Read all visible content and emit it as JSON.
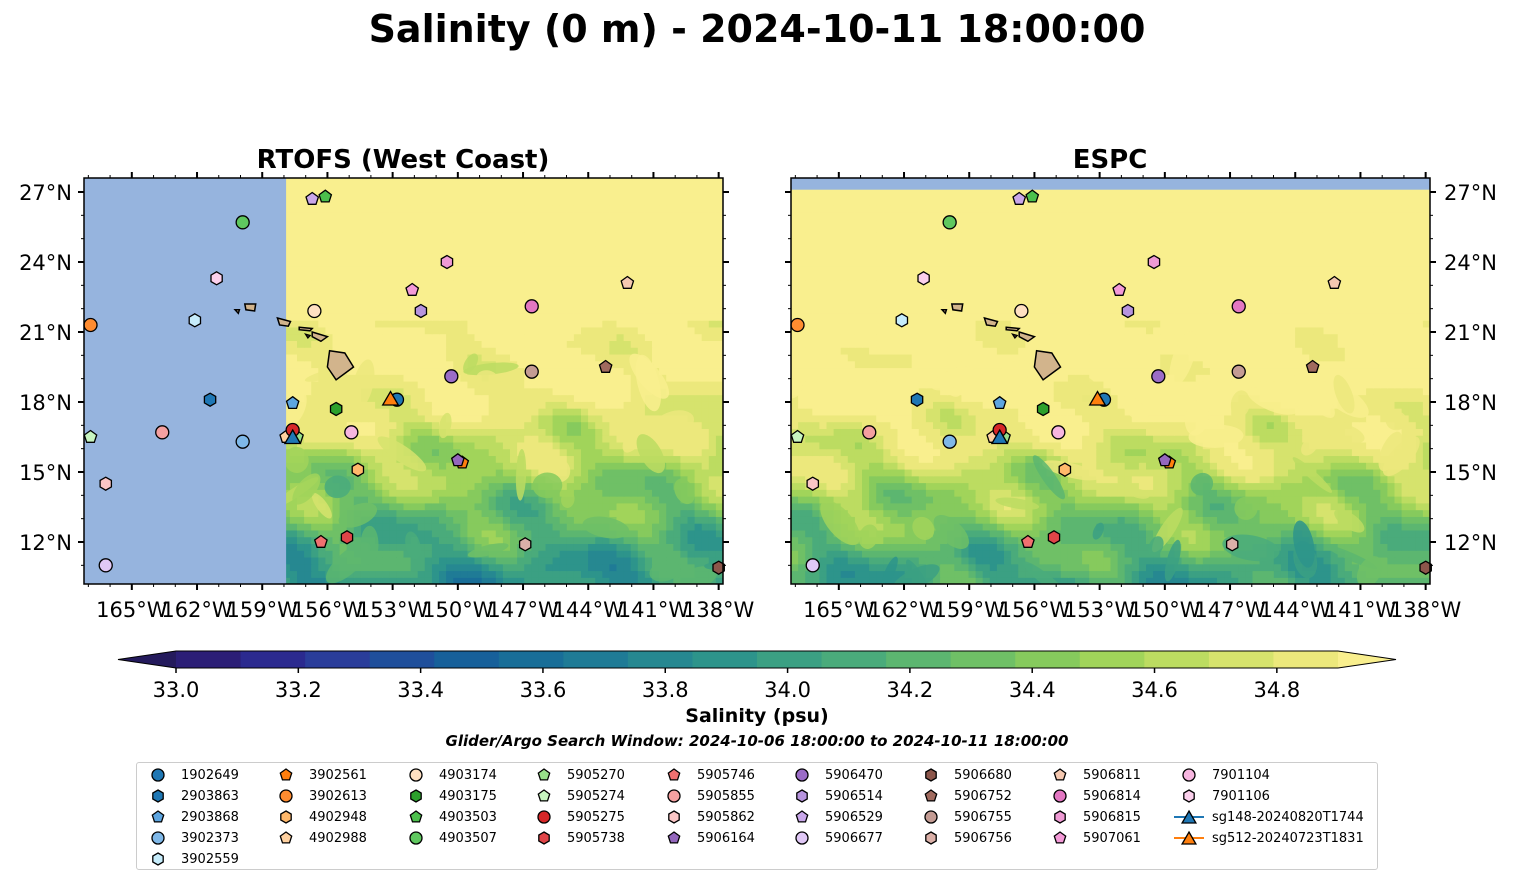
{
  "title": "Salinity (0 m) - 2024-10-11 18:00:00",
  "colorbar": {
    "label": "Salinity (psu)",
    "ticks": [
      "33.0",
      "33.2",
      "33.4",
      "33.6",
      "33.8",
      "34.0",
      "34.2",
      "34.4",
      "34.6",
      "34.8"
    ],
    "min": 33.0,
    "max": 34.9,
    "step": 0.1,
    "colors": [
      "#2b1e76",
      "#2b2a8f",
      "#2a3d9a",
      "#1f4f9b",
      "#17609a",
      "#196e98",
      "#1f7b96",
      "#268891",
      "#2d948b",
      "#3ba083",
      "#4aab7b",
      "#5cb670",
      "#6fc066",
      "#86ca5d",
      "#a1d45a",
      "#bcdc61",
      "#d6e36d",
      "#ece87c"
    ],
    "under_color": "#241a5c",
    "over_color": "#f9ef8e"
  },
  "subtitle": "Glider/Argo Search Window: 2024-10-06 18:00:00 to 2024-10-11 18:00:00",
  "chart_data": [
    {
      "type": "heatmap",
      "panel": "left",
      "title": "RTOFS (West Coast)",
      "xlim": [
        -167.2,
        -137.8
      ],
      "ylim": [
        10.2,
        27.6
      ],
      "xticks": [
        -165,
        -162,
        -159,
        -156,
        -153,
        -150,
        -147,
        -144,
        -141,
        -138
      ],
      "xtick_labels": [
        "165°W",
        "162°W",
        "159°W",
        "156°W",
        "153°W",
        "150°W",
        "147°W",
        "144°W",
        "141°W",
        "138°W"
      ],
      "yticks": [
        12,
        15,
        18,
        21,
        24,
        27
      ],
      "ytick_labels": [
        "12°N",
        "15°N",
        "18°N",
        "21°N",
        "24°N",
        "27°N"
      ],
      "ytick_side": "left",
      "no_data_west_of_lon": -157.9,
      "no_data_color": "#96b4de"
    },
    {
      "type": "heatmap",
      "panel": "right",
      "title": "ESPC",
      "xlim": [
        -167.2,
        -137.8
      ],
      "ylim": [
        10.2,
        27.6
      ],
      "xticks": [
        -165,
        -162,
        -159,
        -156,
        -153,
        -150,
        -147,
        -144,
        -141,
        -138
      ],
      "xtick_labels": [
        "165°W",
        "162°W",
        "159°W",
        "156°W",
        "153°W",
        "150°W",
        "147°W",
        "144°W",
        "141°W",
        "138°W"
      ],
      "yticks": [
        12,
        15,
        18,
        21,
        24,
        27
      ],
      "ytick_labels": [
        "12°N",
        "15°N",
        "18°N",
        "21°N",
        "24°N",
        "27°N"
      ],
      "ytick_side": "right",
      "no_data_north_of_lat": 27.1,
      "no_data_color": "#96b4de"
    }
  ],
  "platforms": [
    {
      "id": "1902649",
      "marker": "circle",
      "color": "#1f77b4",
      "lon": -152.8,
      "lat": 18.1
    },
    {
      "id": "2903863",
      "marker": "hexagon",
      "color": "#1f77b4",
      "lon": -161.4,
      "lat": 18.1
    },
    {
      "id": "2903868",
      "marker": "pentagon",
      "color": "#5da5e0",
      "lon": -157.6,
      "lat": 17.95
    },
    {
      "id": "3902373",
      "marker": "circle",
      "color": "#7fb8e8",
      "lon": -159.9,
      "lat": 16.3
    },
    {
      "id": "3902559",
      "marker": "hexagon",
      "color": "#c6ecfb",
      "lon": -162.1,
      "lat": 21.5
    },
    {
      "id": "3902561",
      "marker": "pentagon",
      "color": "#ff7f0e",
      "lon": -149.8,
      "lat": 15.4
    },
    {
      "id": "3902613",
      "marker": "circle",
      "color": "#ff8c30",
      "lon": -166.9,
      "lat": 21.3
    },
    {
      "id": "4902948",
      "marker": "hexagon",
      "color": "#ffb86b",
      "lon": -154.6,
      "lat": 15.1
    },
    {
      "id": "4902988",
      "marker": "pentagon",
      "color": "#ffd1a0",
      "lon": -157.9,
      "lat": 16.5
    },
    {
      "id": "4903174",
      "marker": "circle",
      "color": "#ffe0c2",
      "lon": -156.6,
      "lat": 21.9
    },
    {
      "id": "4903175",
      "marker": "hexagon",
      "color": "#2ca02c",
      "lon": -155.6,
      "lat": 17.7
    },
    {
      "id": "4903503",
      "marker": "pentagon",
      "color": "#4cc04c",
      "lon": -156.1,
      "lat": 26.8
    },
    {
      "id": "4903507",
      "marker": "circle",
      "color": "#5fc85f",
      "lon": -159.9,
      "lat": 25.7
    },
    {
      "id": "5905270",
      "marker": "pentagon",
      "color": "#98df8a",
      "lon": -157.4,
      "lat": 16.5
    },
    {
      "id": "5905274",
      "marker": "pentagon",
      "color": "#c8f5c0",
      "lon": -166.9,
      "lat": 16.5
    },
    {
      "id": "5905275",
      "marker": "circle",
      "color": "#d62728",
      "lon": -157.6,
      "lat": 16.8
    },
    {
      "id": "5905738",
      "marker": "hexagon",
      "color": "#e04548",
      "lon": -155.1,
      "lat": 12.2
    },
    {
      "id": "5905746",
      "marker": "pentagon",
      "color": "#f07070",
      "lon": -156.3,
      "lat": 12.0
    },
    {
      "id": "5905855",
      "marker": "circle",
      "color": "#f4a0a0",
      "lon": -163.6,
      "lat": 16.7
    },
    {
      "id": "5905862",
      "marker": "hexagon",
      "color": "#fbc6c6",
      "lon": -166.2,
      "lat": 14.5
    },
    {
      "id": "5906164",
      "marker": "pentagon",
      "color": "#9467bd",
      "lon": -150.0,
      "lat": 15.5
    },
    {
      "id": "5906470",
      "marker": "circle",
      "color": "#9b6cc7",
      "lon": -150.3,
      "lat": 19.1
    },
    {
      "id": "5906514",
      "marker": "hexagon",
      "color": "#b794de",
      "lon": -151.7,
      "lat": 21.9
    },
    {
      "id": "5906529",
      "marker": "pentagon",
      "color": "#c9a7ea",
      "lon": -156.7,
      "lat": 26.7
    },
    {
      "id": "5906677",
      "marker": "circle",
      "color": "#e0c8f6",
      "lon": -166.2,
      "lat": 11.0
    },
    {
      "id": "5906680",
      "marker": "hexagon",
      "color": "#8c564b",
      "lon": -138.0,
      "lat": 10.9
    },
    {
      "id": "5906752",
      "marker": "pentagon",
      "color": "#a06a5e",
      "lon": -143.2,
      "lat": 19.5
    },
    {
      "id": "5906755",
      "marker": "circle",
      "color": "#c49c94",
      "lon": -146.6,
      "lat": 19.3
    },
    {
      "id": "5906756",
      "marker": "hexagon",
      "color": "#dbb0a8",
      "lon": -146.9,
      "lat": 11.9
    },
    {
      "id": "5906811",
      "marker": "pentagon",
      "color": "#f5c8b0",
      "lon": -142.2,
      "lat": 23.1
    },
    {
      "id": "5906814",
      "marker": "circle",
      "color": "#e377c2",
      "lon": -146.6,
      "lat": 22.1
    },
    {
      "id": "5906815",
      "marker": "hexagon",
      "color": "#ef9ad4",
      "lon": -150.5,
      "lat": 24.0
    },
    {
      "id": "5907061",
      "marker": "pentagon",
      "color": "#f49ad8",
      "lon": -152.1,
      "lat": 22.8
    },
    {
      "id": "7901104",
      "marker": "circle",
      "color": "#f7b6e0",
      "lon": -154.9,
      "lat": 16.7
    },
    {
      "id": "7901106",
      "marker": "hexagon",
      "color": "#fbd0ec",
      "lon": -161.1,
      "lat": 23.3
    }
  ],
  "gliders": [
    {
      "id": "sg148-20240820T1744",
      "color": "#1f77b4",
      "lon": -157.6,
      "lat": 16.5
    },
    {
      "id": "sg512-20240723T1831",
      "color": "#ff7f0e",
      "lon": -153.1,
      "lat": 18.15
    }
  ],
  "islands": [
    {
      "name": "Hawaii",
      "lonlat": [
        [
          -155.9,
          20.2
        ],
        [
          -155.2,
          20.1
        ],
        [
          -154.8,
          19.5
        ],
        [
          -155.6,
          18.95
        ],
        [
          -156.0,
          19.5
        ],
        [
          -155.9,
          20.2
        ]
      ]
    },
    {
      "name": "Maui",
      "lonlat": [
        [
          -156.7,
          21.0
        ],
        [
          -156.0,
          20.8
        ],
        [
          -156.3,
          20.6
        ],
        [
          -156.7,
          20.8
        ],
        [
          -156.7,
          21.0
        ]
      ]
    },
    {
      "name": "Molokai",
      "lonlat": [
        [
          -157.3,
          21.2
        ],
        [
          -156.7,
          21.15
        ],
        [
          -156.8,
          21.05
        ],
        [
          -157.3,
          21.1
        ],
        [
          -157.3,
          21.2
        ]
      ]
    },
    {
      "name": "Oahu",
      "lonlat": [
        [
          -158.3,
          21.6
        ],
        [
          -157.7,
          21.45
        ],
        [
          -157.8,
          21.25
        ],
        [
          -158.2,
          21.3
        ],
        [
          -158.3,
          21.6
        ]
      ]
    },
    {
      "name": "Kauai",
      "lonlat": [
        [
          -159.8,
          22.2
        ],
        [
          -159.3,
          22.2
        ],
        [
          -159.35,
          21.9
        ],
        [
          -159.75,
          21.95
        ],
        [
          -159.8,
          22.2
        ]
      ]
    },
    {
      "name": "Niihau",
      "lonlat": [
        [
          -160.25,
          21.95
        ],
        [
          -160.05,
          21.95
        ],
        [
          -160.1,
          21.8
        ],
        [
          -160.25,
          21.95
        ]
      ]
    },
    {
      "name": "Lanai",
      "lonlat": [
        [
          -157.0,
          20.9
        ],
        [
          -156.8,
          20.85
        ],
        [
          -156.9,
          20.75
        ],
        [
          -157.0,
          20.9
        ]
      ]
    }
  ]
}
